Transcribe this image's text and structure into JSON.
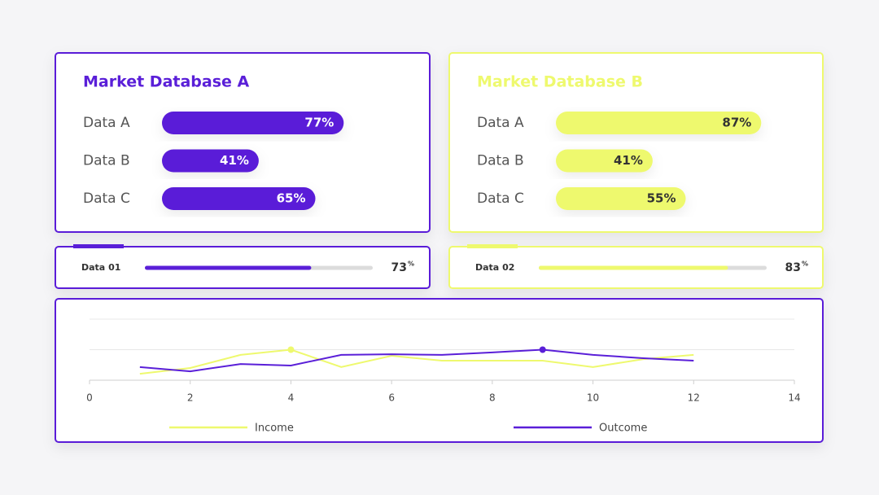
{
  "chart_data": [
    {
      "type": "bar",
      "title": "Market Database A",
      "categories": [
        "Data A",
        "Data B",
        "Data C"
      ],
      "values": [
        77,
        41,
        65
      ],
      "value_labels": [
        "77%",
        "41%",
        "65%"
      ],
      "color": "#5a1fd8",
      "xlim": [
        0,
        100
      ]
    },
    {
      "type": "bar",
      "title": "Market Database B",
      "categories": [
        "Data A",
        "Data B",
        "Data C"
      ],
      "values": [
        87,
        41,
        55
      ],
      "value_labels": [
        "87%",
        "41%",
        "55%"
      ],
      "color": "#eef96e",
      "xlim": [
        0,
        100
      ]
    },
    {
      "type": "progress",
      "categories": [
        "Data 01"
      ],
      "values": [
        73
      ],
      "unit": "%",
      "color": "#5a1fd8",
      "xlim": [
        0,
        100
      ]
    },
    {
      "type": "progress",
      "categories": [
        "Data 02"
      ],
      "values": [
        83
      ],
      "unit": "%",
      "color": "#eef96e",
      "xlim": [
        0,
        100
      ]
    },
    {
      "type": "line",
      "x": [
        1,
        2,
        3,
        4,
        5,
        6,
        7,
        8,
        9,
        10,
        11,
        12
      ],
      "series": [
        {
          "name": "Income",
          "color": "#eef96e",
          "values": [
            2.1,
            4,
            8.3,
            10,
            4.3,
            8,
            6.4,
            6.4,
            6.4,
            4.3,
            6.9,
            8.3
          ]
        },
        {
          "name": "Outcome",
          "color": "#5a1fd8",
          "values": [
            4.3,
            2.9,
            5.3,
            4.8,
            8.3,
            8.5,
            8.3,
            9.1,
            10,
            8.3,
            7.2,
            6.4
          ]
        }
      ],
      "xlim": [
        0,
        14
      ],
      "xticks": [
        0,
        2,
        4,
        6,
        8,
        10,
        12,
        14
      ],
      "ylim": [
        0,
        20
      ],
      "yticks": [
        0,
        10,
        20
      ],
      "grid": true
    }
  ]
}
